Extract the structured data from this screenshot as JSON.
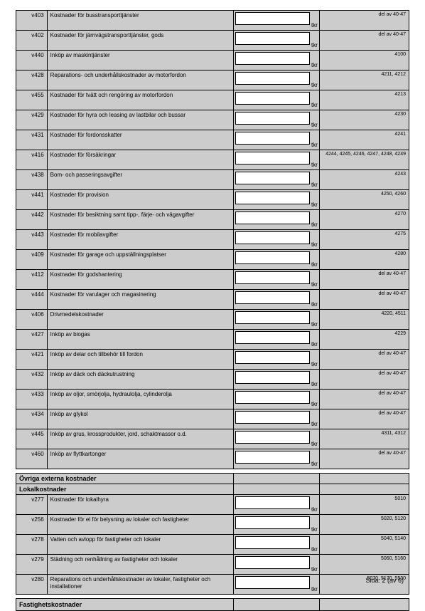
{
  "unit": "tkr",
  "sections": {
    "main_rows": [
      {
        "code": "v403",
        "desc": "Kostnader för busstransporttjänster",
        "note": "del av 40-47"
      },
      {
        "code": "v402",
        "desc": "Kostnader för järnvägstransporttjänster, gods",
        "note": "del av 40-47"
      },
      {
        "code": "v440",
        "desc": "Inköp av maskintjänster",
        "note": "4100"
      },
      {
        "code": "v428",
        "desc": "Reparations- och underhållskostnader av motorfordon",
        "note": "4211, 4212"
      },
      {
        "code": "v455",
        "desc": "Kostnader för tvätt och rengöring av motorfordon",
        "note": "4213"
      },
      {
        "code": "v429",
        "desc": "Kostnader för hyra och leasing av lastbilar och bussar",
        "note": "4230"
      },
      {
        "code": "v431",
        "desc": "Kostnader för fordonsskatter",
        "note": "4241"
      },
      {
        "code": "v416",
        "desc": "Kostnader för försäkringar",
        "note": "4244, 4245, 4246, 4247, 4248, 4249"
      },
      {
        "code": "v438",
        "desc": "Bom- och passeringsavgifter",
        "note": "4243"
      },
      {
        "code": "v441",
        "desc": "Kostnader för provision",
        "note": "4250, 4260"
      },
      {
        "code": "v442",
        "desc": "Kostnader för besiktning samt tipp-, färje- och vägavgifter",
        "note": "4270"
      },
      {
        "code": "v443",
        "desc": "Kostnader för mobilavgifter",
        "note": "4275"
      },
      {
        "code": "v409",
        "desc": "Kostnader för garage och uppställningsplatser",
        "note": "4280"
      },
      {
        "code": "v412",
        "desc": "Kostnader för godshantering",
        "note": "del av 40-47"
      },
      {
        "code": "v444",
        "desc": "Kostnader för varulager och magasinering",
        "note": "del av 40-47"
      },
      {
        "code": "v406",
        "desc": "Drivmedelskostnader",
        "note": "4220, 4511"
      },
      {
        "code": "v427",
        "desc": "Inköp av biogas",
        "note": "4229"
      },
      {
        "code": "v421",
        "desc": "Inköp av delar och tillbehör till fordon",
        "note": "del av 40-47"
      },
      {
        "code": "v432",
        "desc": "Inköp av däck och däckutrustning",
        "note": "del av 40-47"
      },
      {
        "code": "v433",
        "desc": "Inköp av oljor, smörjolja, hydraulolja, cylinderolja",
        "note": "del av 40-47"
      },
      {
        "code": "v434",
        "desc": "Inköp av glykol",
        "note": "del av 40-47"
      },
      {
        "code": "v445",
        "desc": "Inköp av grus, krossprodukter, jord, schaktmassor o.d.",
        "note": "4311, 4312"
      },
      {
        "code": "v460",
        "desc": "Inköp av flyttkartonger",
        "note": "del av 40-47"
      }
    ],
    "ovriga_title": "Övriga externa kostnader",
    "lokal_title": "Lokalkostnader",
    "lokal_rows": [
      {
        "code": "v277",
        "desc": "Kostnader för lokalhyra",
        "note": "5010"
      },
      {
        "code": "v256",
        "desc": "Kostnader för el för belysning av lokaler och fastigheter",
        "note": "5020, 5120"
      },
      {
        "code": "v278",
        "desc": "Vatten och avlopp för fastigheter och lokaler",
        "note": "5040, 5140"
      },
      {
        "code": "v279",
        "desc": "Städning och renhållning av fastigheter och lokaler",
        "note": "5060, 5160"
      },
      {
        "code": "v280",
        "desc": "Reparations och underhållskostnader av lokaler, fastigheter och installationer",
        "note": "5070, 5170, 5530"
      }
    ],
    "fastighets_title": "Fastighetskostnader"
  },
  "footer": "Sida: 2 (av 6)"
}
